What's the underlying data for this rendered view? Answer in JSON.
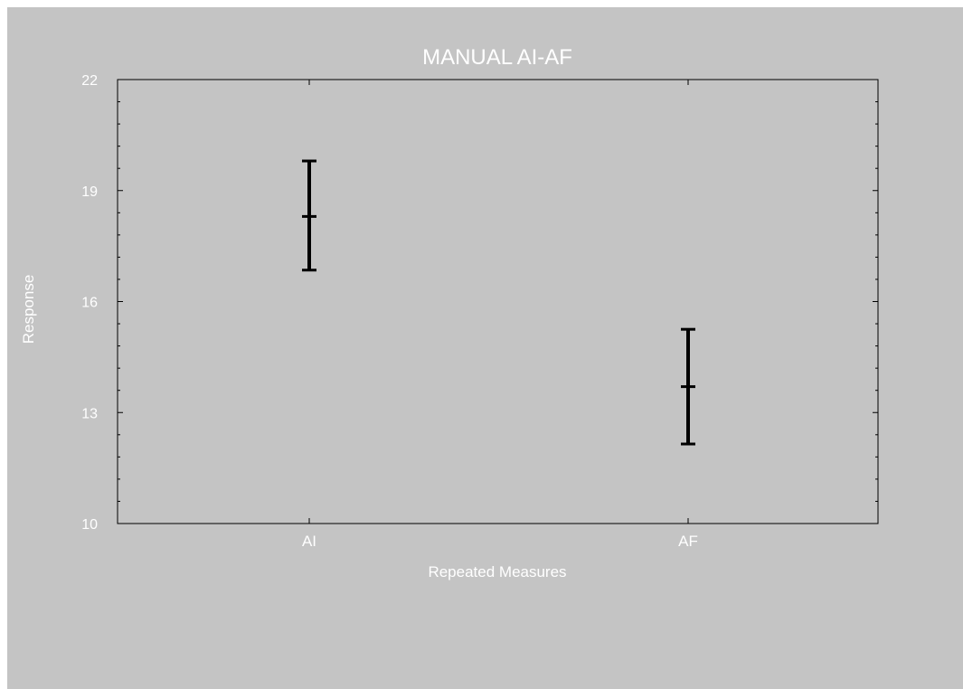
{
  "chart_data": {
    "type": "errorbar",
    "title": "MANUAL AI-AF",
    "xlabel": "Repeated Measures",
    "ylabel": "Response",
    "categories": [
      "AI",
      "AF"
    ],
    "means": [
      18.3,
      13.7
    ],
    "lower": [
      16.85,
      12.15
    ],
    "upper": [
      19.8,
      15.25
    ],
    "ylim": [
      10,
      22
    ],
    "yticks": [
      10,
      13,
      16,
      19,
      22
    ],
    "grid": false,
    "colors": {
      "background": "#c4c4c4",
      "text": "#ffffff",
      "axis": "#000000",
      "bars": "#000000"
    }
  }
}
